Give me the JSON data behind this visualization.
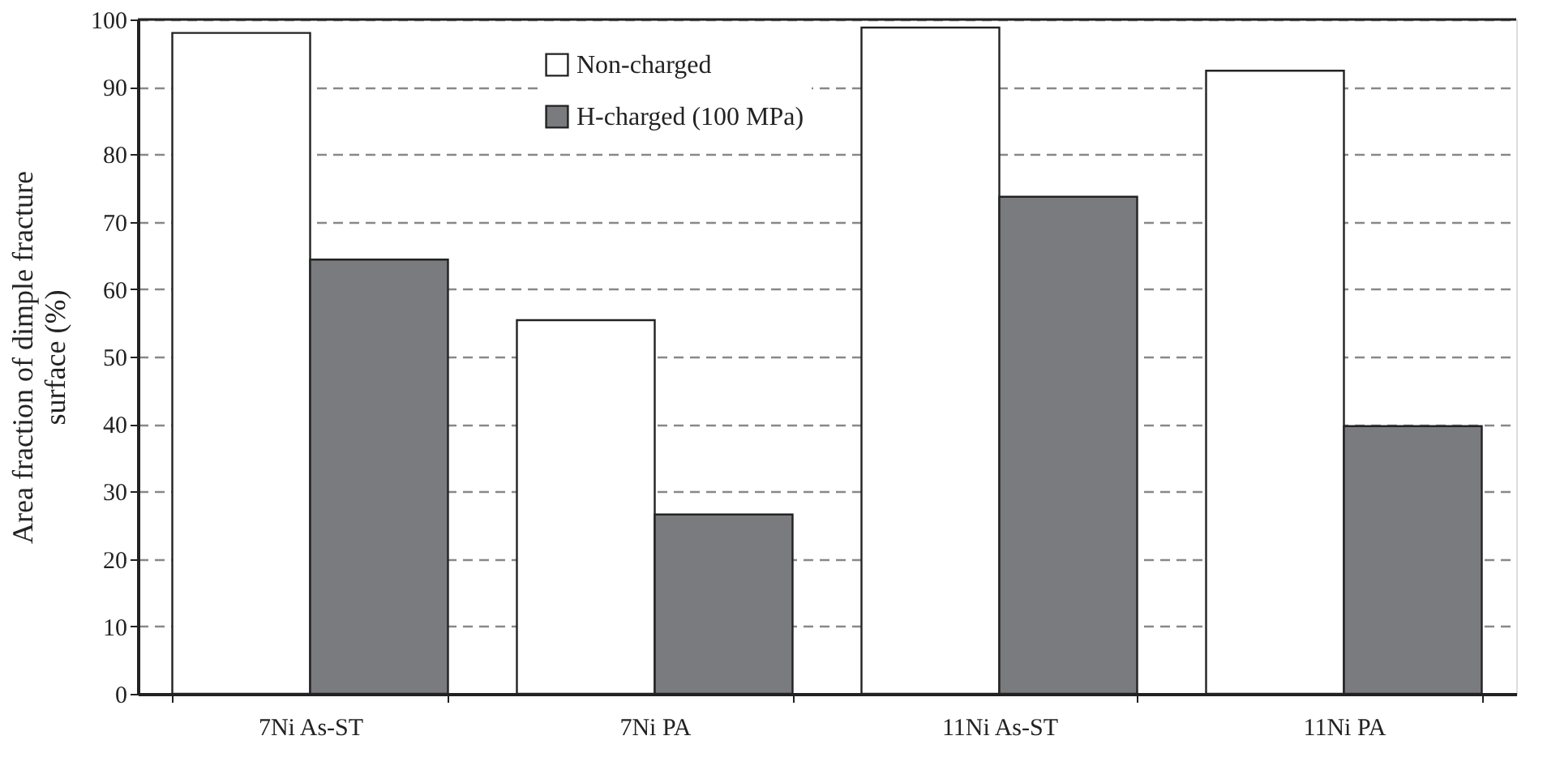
{
  "chart_data": {
    "type": "bar",
    "ylabel": "Area fraction of dimple fracture\nsurface (%)",
    "categories": [
      "7Ni As-ST",
      "7Ni PA",
      "11Ni As-ST",
      "11Ni PA"
    ],
    "series": [
      {
        "name": "Non-charged",
        "color": "#ffffff",
        "values": [
          98.0,
          55.4,
          98.8,
          92.4
        ]
      },
      {
        "name": "H-charged (100 MPa)",
        "color": "#7a7b7f",
        "values": [
          64.4,
          26.6,
          73.7,
          39.7
        ]
      }
    ],
    "ylim": [
      0,
      100
    ],
    "yticks": [
      0,
      10,
      20,
      30,
      40,
      50,
      60,
      70,
      80,
      90,
      100
    ],
    "grid": "y",
    "legend": "top left"
  }
}
